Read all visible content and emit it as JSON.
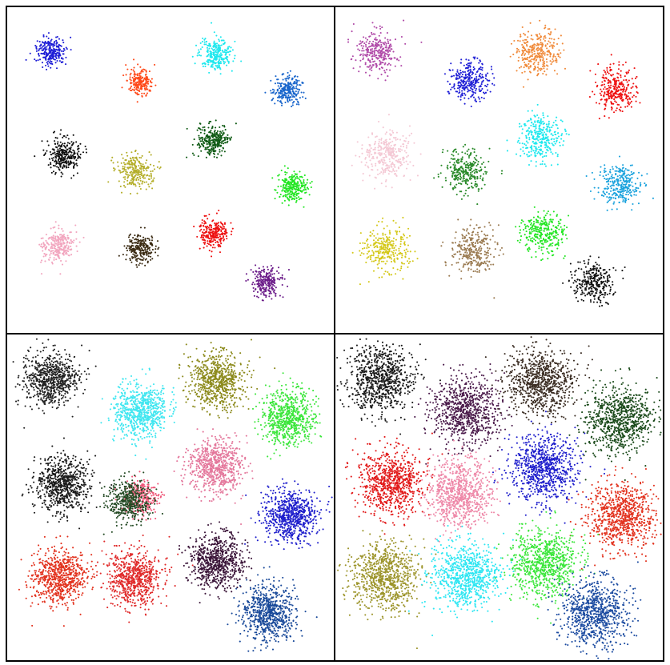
{
  "chart_data": [
    {
      "type": "scatter",
      "title": "",
      "xlabel": "",
      "ylabel": "",
      "xlim": [
        0,
        410
      ],
      "ylim": [
        0,
        410
      ],
      "axes_visible": false,
      "grid": false,
      "legend": "none",
      "clusters": [
        {
          "color": "#1f1fd6",
          "center": [
            55,
            56
          ],
          "spread": 9,
          "n": 260
        },
        {
          "color": "#ff4a1a",
          "center": [
            167,
            93
          ],
          "spread": 8,
          "n": 210
        },
        {
          "color": "#1fe8ee",
          "center": [
            262,
            60
          ],
          "spread": 10,
          "n": 280
        },
        {
          "color": "#1a66cc",
          "center": [
            351,
            104
          ],
          "spread": 9,
          "n": 250
        },
        {
          "color": "#111111",
          "center": [
            72,
            186
          ],
          "spread": 10,
          "n": 300
        },
        {
          "color": "#b4ae2a",
          "center": [
            160,
            206
          ],
          "spread": 11,
          "n": 260
        },
        {
          "color": "#0f5a14",
          "center": [
            259,
            168
          ],
          "spread": 10,
          "n": 280
        },
        {
          "color": "#22e622",
          "center": [
            358,
            227
          ],
          "spread": 9,
          "n": 260
        },
        {
          "color": "#f2a6bf",
          "center": [
            63,
            300
          ],
          "spread": 10,
          "n": 270
        },
        {
          "color": "#3a2a12",
          "center": [
            167,
            305
          ],
          "spread": 9,
          "n": 240
        },
        {
          "color": "#ee1111",
          "center": [
            260,
            284
          ],
          "spread": 9,
          "n": 260
        },
        {
          "color": "#6a1a88",
          "center": [
            325,
            346
          ],
          "spread": 9,
          "n": 240
        }
      ]
    },
    {
      "type": "scatter",
      "title": "",
      "xlabel": "",
      "ylabel": "",
      "xlim": [
        0,
        410
      ],
      "ylim": [
        0,
        410
      ],
      "axes_visible": false,
      "grid": false,
      "legend": "none",
      "clusters": [
        {
          "color": "#b04aa8",
          "center": [
            52,
            56
          ],
          "spread": 13,
          "n": 300
        },
        {
          "color": "#1f1fd6",
          "center": [
            168,
            92
          ],
          "spread": 12,
          "n": 300
        },
        {
          "color": "#f08a3a",
          "center": [
            253,
            58
          ],
          "spread": 14,
          "n": 320
        },
        {
          "color": "#ee1111",
          "center": [
            350,
            103
          ],
          "spread": 13,
          "n": 300
        },
        {
          "color": "#f4c8d4",
          "center": [
            66,
            186
          ],
          "spread": 15,
          "n": 320
        },
        {
          "color": "#2a8a2a",
          "center": [
            162,
            205
          ],
          "spread": 13,
          "n": 300
        },
        {
          "color": "#1fe8ee",
          "center": [
            258,
            164
          ],
          "spread": 14,
          "n": 320
        },
        {
          "color": "#1aa2dd",
          "center": [
            355,
            225
          ],
          "spread": 13,
          "n": 300
        },
        {
          "color": "#d4c81a",
          "center": [
            64,
            304
          ],
          "spread": 14,
          "n": 300
        },
        {
          "color": "#9a7a50",
          "center": [
            172,
            306
          ],
          "spread": 14,
          "n": 300
        },
        {
          "color": "#22e622",
          "center": [
            261,
            285
          ],
          "spread": 13,
          "n": 300
        },
        {
          "color": "#111111",
          "center": [
            323,
            345
          ],
          "spread": 13,
          "n": 300
        }
      ]
    },
    {
      "type": "scatter",
      "title": "",
      "xlabel": "",
      "ylabel": "",
      "xlim": [
        0,
        410
      ],
      "ylim": [
        0,
        410
      ],
      "axes_visible": false,
      "grid": false,
      "legend": "none",
      "clusters": [
        {
          "color": "#222222",
          "center": [
            55,
            57
          ],
          "spread": 17,
          "n": 700
        },
        {
          "color": "#3fe6f0",
          "center": [
            168,
            96
          ],
          "spread": 17,
          "n": 700
        },
        {
          "color": "#8c8a1c",
          "center": [
            263,
            58
          ],
          "spread": 17,
          "n": 700
        },
        {
          "color": "#3ce63c",
          "center": [
            352,
            105
          ],
          "spread": 17,
          "n": 700
        },
        {
          "color": "#1a1a1a",
          "center": [
            70,
            188
          ],
          "spread": 17,
          "n": 700
        },
        {
          "color": "#ee5577",
          "center": [
            170,
            205
          ],
          "spread": 11,
          "n": 280
        },
        {
          "color": "#244a24",
          "center": [
            152,
            210
          ],
          "spread": 13,
          "n": 450
        },
        {
          "color": "#e4789c",
          "center": [
            261,
            166
          ],
          "spread": 17,
          "n": 700
        },
        {
          "color": "#1f1fcc",
          "center": [
            356,
            228
          ],
          "spread": 17,
          "n": 700
        },
        {
          "color": "#e2321e",
          "center": [
            65,
            306
          ],
          "spread": 17,
          "n": 700
        },
        {
          "color": "#e02a2a",
          "center": [
            160,
            306
          ],
          "spread": 17,
          "n": 700
        },
        {
          "color": "#3a1438",
          "center": [
            263,
            286
          ],
          "spread": 17,
          "n": 700
        },
        {
          "color": "#1a4a9a",
          "center": [
            328,
            350
          ],
          "spread": 17,
          "n": 700
        }
      ]
    },
    {
      "type": "scatter",
      "title": "",
      "xlabel": "",
      "ylabel": "",
      "xlim": [
        0,
        410
      ],
      "ylim": [
        0,
        410
      ],
      "axes_visible": false,
      "grid": false,
      "legend": "none",
      "clusters": [
        {
          "color": "#1a1a1a",
          "center": [
            56,
            56
          ],
          "spread": 21,
          "n": 800
        },
        {
          "color": "#4a1a4a",
          "center": [
            163,
            96
          ],
          "spread": 21,
          "n": 800
        },
        {
          "color": "#3a2c22",
          "center": [
            258,
            60
          ],
          "spread": 21,
          "n": 800
        },
        {
          "color": "#1a4a1a",
          "center": [
            355,
            108
          ],
          "spread": 21,
          "n": 800
        },
        {
          "color": "#e21a1a",
          "center": [
            70,
            185
          ],
          "spread": 20,
          "n": 800
        },
        {
          "color": "#ee88a8",
          "center": [
            155,
            200
          ],
          "spread": 20,
          "n": 800
        },
        {
          "color": "#1f1fcc",
          "center": [
            262,
            168
          ],
          "spread": 21,
          "n": 800
        },
        {
          "color": "#e2321e",
          "center": [
            358,
            228
          ],
          "spread": 21,
          "n": 800
        },
        {
          "color": "#9c942a",
          "center": [
            62,
            305
          ],
          "spread": 21,
          "n": 800
        },
        {
          "color": "#2de6f2",
          "center": [
            163,
            304
          ],
          "spread": 21,
          "n": 800
        },
        {
          "color": "#3ce63c",
          "center": [
            262,
            288
          ],
          "spread": 21,
          "n": 800
        },
        {
          "color": "#1a4aa0",
          "center": [
            325,
            350
          ],
          "spread": 21,
          "n": 800
        }
      ]
    }
  ]
}
